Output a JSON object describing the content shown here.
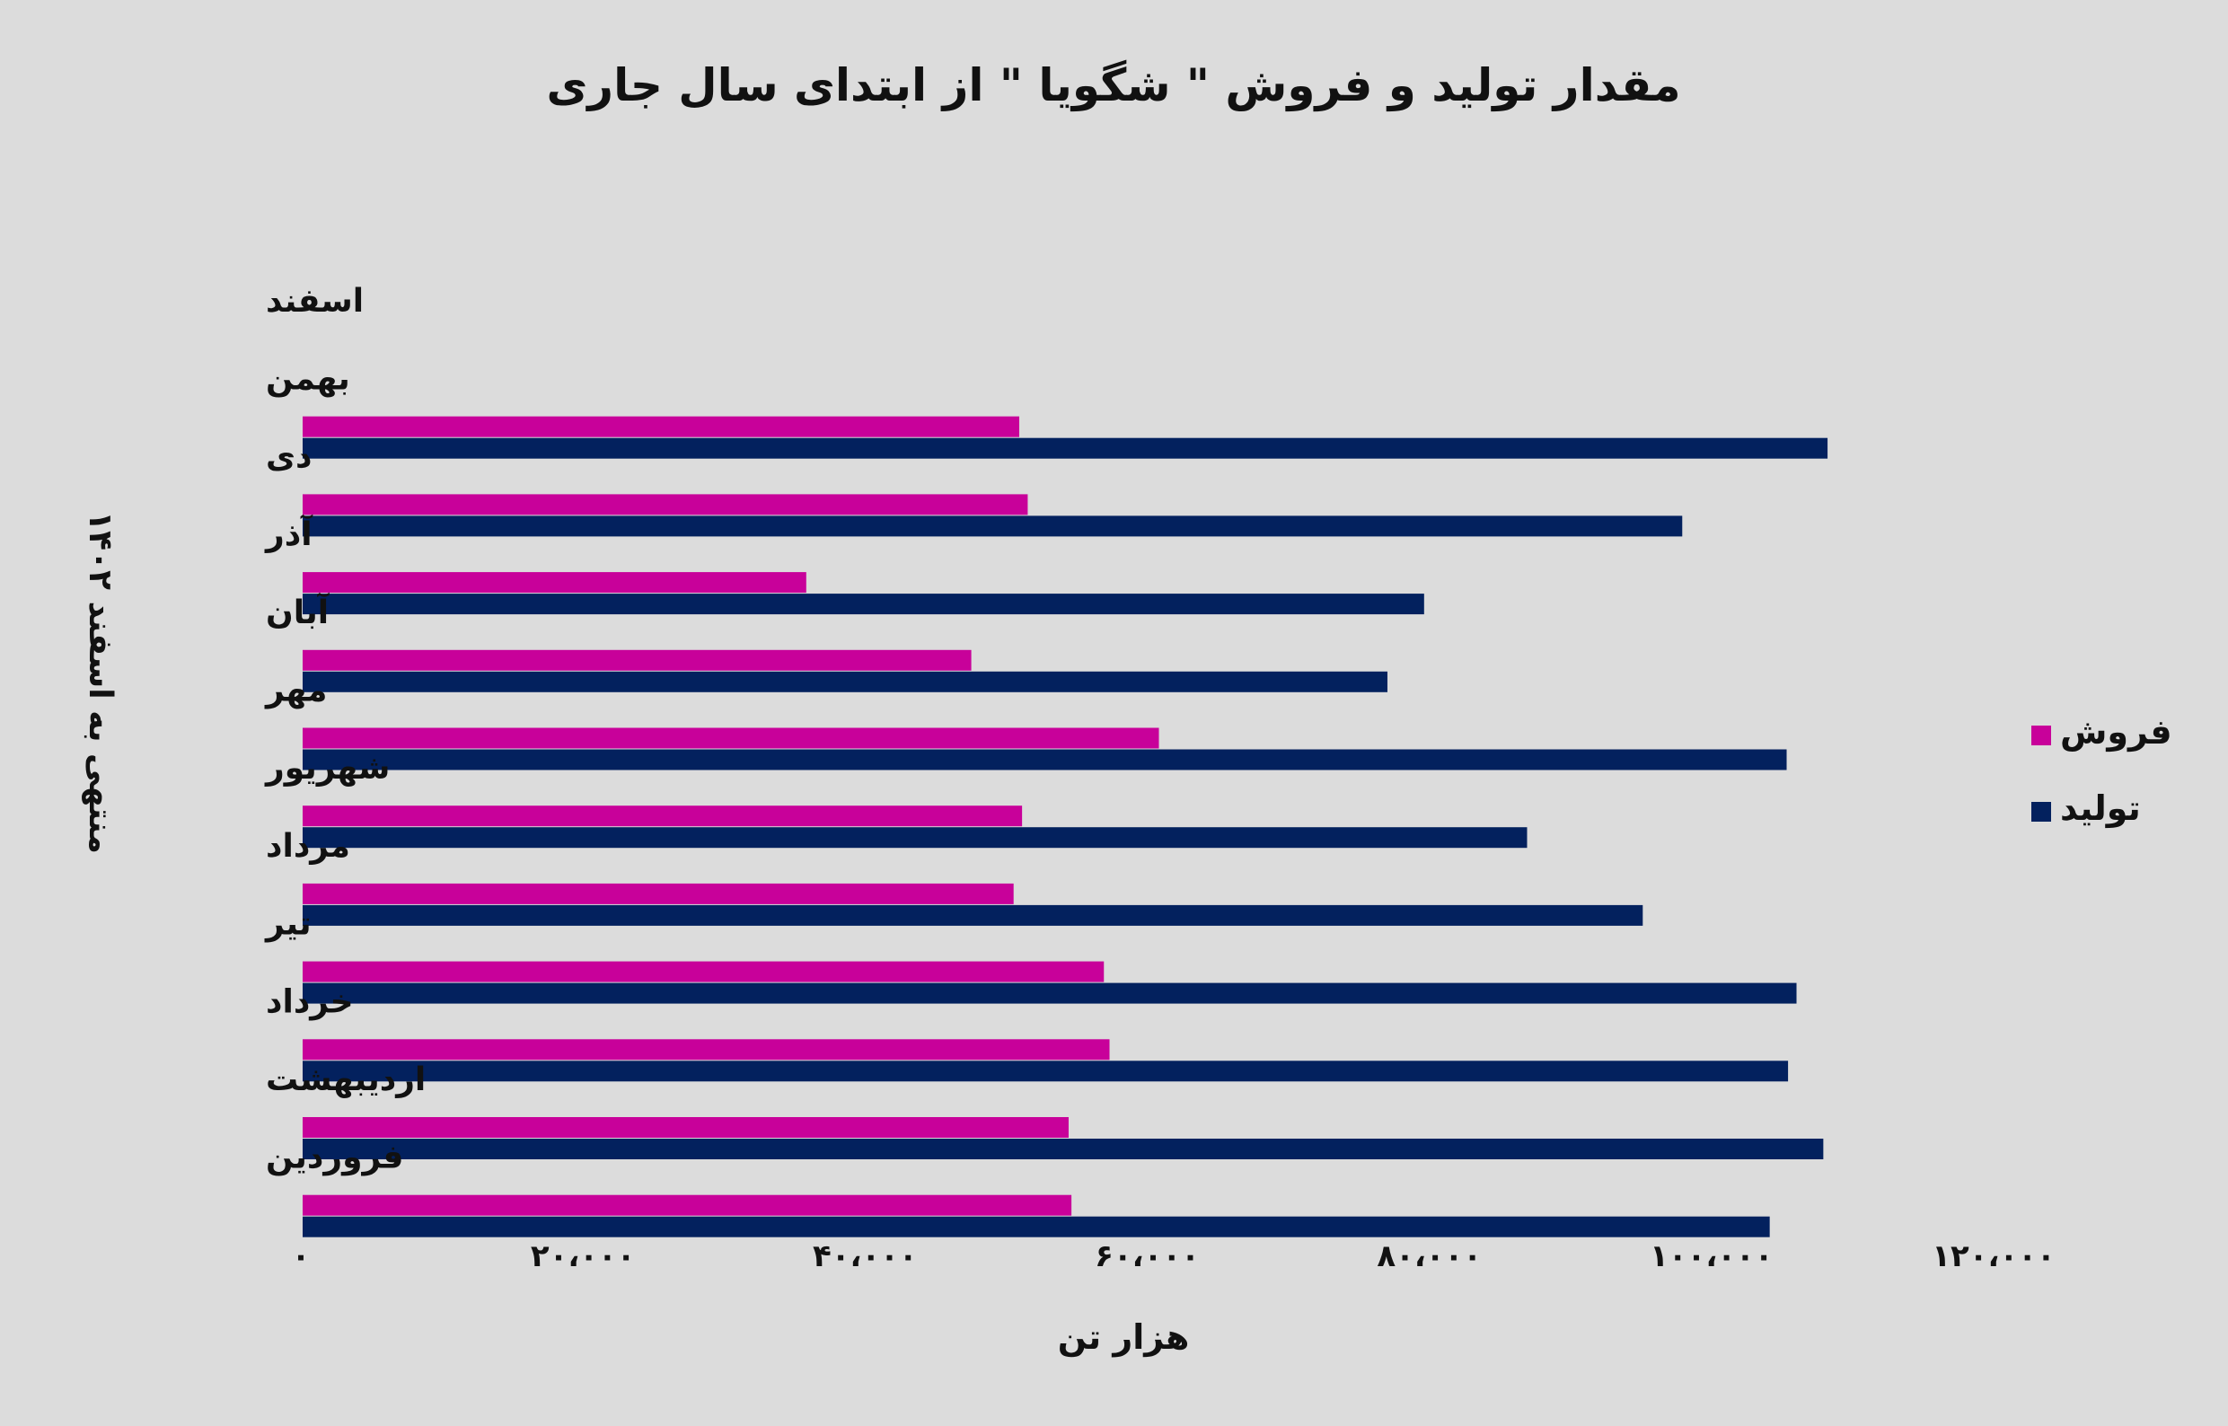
{
  "chart_data": {
    "type": "bar",
    "orientation": "horizontal",
    "title": "مقدار تولید و فروش \" شگویا \" از ابتدای سال جاری",
    "xlabel": "هزار تن",
    "ylabel": "منتهی به اسفند ۱۴۰۲",
    "xlim": [
      0,
      120000
    ],
    "x_ticks": [
      0,
      20000,
      40000,
      60000,
      80000,
      100000,
      120000
    ],
    "x_tick_labels": [
      "۰",
      "۲۰،۰۰۰",
      "۴۰،۰۰۰",
      "۶۰،۰۰۰",
      "۸۰،۰۰۰",
      "۱۰۰،۰۰۰",
      "۱۲۰،۰۰۰"
    ],
    "categories": [
      "فروردین",
      "اردیبهشت",
      "خرداد",
      "تیر",
      "مرداد",
      "شهریور",
      "مهر",
      "آبان",
      "آذر",
      "دی",
      "بهمن",
      "اسفند"
    ],
    "series": [
      {
        "name": "فروش",
        "color": "#c8019a",
        "values": [
          54500,
          54300,
          57200,
          56800,
          50400,
          51000,
          60700,
          47400,
          35700,
          51400,
          50800,
          null
        ]
      },
      {
        "name": "تولید",
        "color": "#03215e",
        "values": [
          104000,
          107800,
          105300,
          105900,
          95000,
          86800,
          105200,
          76900,
          79500,
          97800,
          108100,
          null
        ]
      }
    ],
    "legend_position": "right",
    "grid": false
  }
}
